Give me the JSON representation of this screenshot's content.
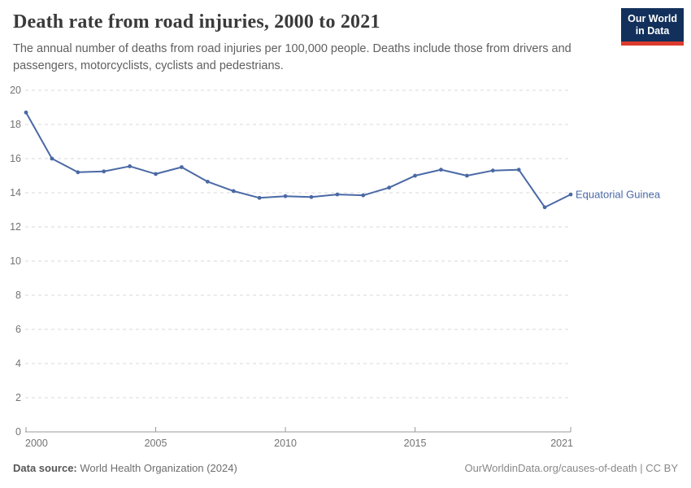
{
  "header": {
    "title": "Death rate from road injuries, 2000 to 2021",
    "subtitle": "The annual number of deaths from road injuries per 100,000 people. Deaths include those from drivers and passengers, motorcyclists, cyclists and pedestrians.",
    "logo": {
      "line1": "Our World",
      "line2": "in Data",
      "bg_color": "#12305b",
      "accent_color": "#dc3b2e"
    }
  },
  "chart_data": {
    "type": "line",
    "title": "Death rate from road injuries, 2000 to 2021",
    "x": [
      2000,
      2001,
      2002,
      2003,
      2004,
      2005,
      2006,
      2007,
      2008,
      2009,
      2010,
      2011,
      2012,
      2013,
      2014,
      2015,
      2016,
      2017,
      2018,
      2019,
      2020,
      2021
    ],
    "series": [
      {
        "name": "Equatorial Guinea",
        "color": "#4a69a5",
        "values": [
          18.7,
          16.0,
          15.2,
          15.25,
          15.55,
          15.1,
          15.5,
          14.65,
          14.1,
          13.7,
          13.8,
          13.75,
          13.9,
          13.85,
          14.3,
          15.0,
          15.35,
          15.0,
          15.3,
          15.35,
          13.15,
          13.9
        ]
      }
    ],
    "xlabel": "",
    "ylabel": "",
    "ylim": [
      0,
      20
    ],
    "yticks": [
      0,
      2,
      4,
      6,
      8,
      10,
      12,
      14,
      16,
      18,
      20
    ],
    "xticks": [
      2000,
      2005,
      2010,
      2015,
      2021
    ],
    "grid": "horizontal-dashed",
    "grid_color": "#dadada",
    "axis_color": "#999999",
    "tick_label_color": "#737373",
    "legend": "end-of-line-label",
    "end_label": "Equatorial Guinea"
  },
  "footer": {
    "source_label": "Data source:",
    "source_value": "World Health Organization (2024)",
    "link": "OurWorldinData.org/causes-of-death | CC BY"
  }
}
